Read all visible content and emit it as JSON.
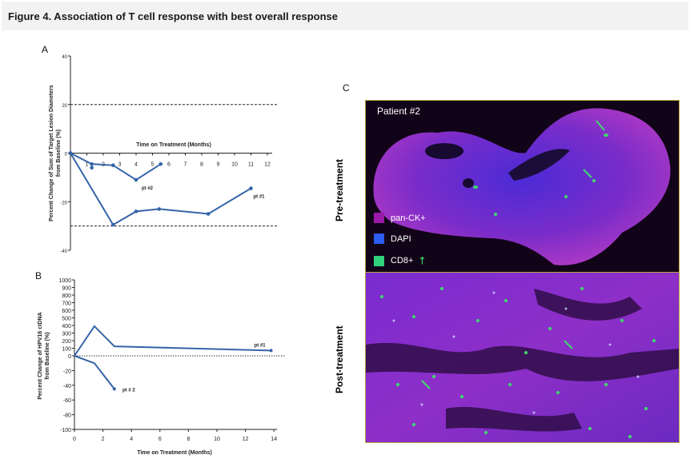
{
  "figure": {
    "title": "Figure 4. Association of T cell response with best overall response",
    "panel_a_letter": "A",
    "panel_b_letter": "B",
    "panel_c_letter": "C"
  },
  "chart_data": [
    {
      "type": "line",
      "panel": "A",
      "xlabel": "Time on Treatment (Months)",
      "ylabel": "Percent Change of Sum of Target Lesion Diameters from Baseline (%)",
      "xlim": [
        0,
        12
      ],
      "ylim": [
        -40,
        40
      ],
      "x_ticks": [
        1,
        2,
        3,
        4,
        5,
        6,
        7,
        8,
        9,
        10,
        11,
        12
      ],
      "y_ticks": [
        40,
        20,
        0,
        -20,
        -40
      ],
      "reference_lines": [
        20,
        -30
      ],
      "series": [
        {
          "name": "pt #1",
          "x": [
            0,
            2.6,
            4,
            5.4,
            8.4,
            11
          ],
          "y": [
            0,
            -29.5,
            -24,
            -23,
            -25,
            -14.5
          ]
        },
        {
          "name": "pt #2",
          "x": [
            0,
            1.3,
            2.6,
            4,
            5.5
          ],
          "y": [
            0,
            -4.5,
            -5,
            -11,
            -4.5
          ]
        }
      ],
      "extra_points": [
        {
          "x": 1.3,
          "y": -6
        }
      ],
      "series_color": "#3464a8"
    },
    {
      "type": "line",
      "panel": "B",
      "xlabel": "Time on Treatment  (Months)",
      "ylabel": "Percent Change of HPV16 ctDNA from Baseline (%)",
      "xlim": [
        0,
        14
      ],
      "ylim": [
        -100,
        1000
      ],
      "x_ticks": [
        0,
        2,
        4,
        6,
        8,
        10,
        12,
        14
      ],
      "y_ticks": [
        1000,
        900,
        800,
        700,
        600,
        500,
        400,
        300,
        200,
        100,
        0,
        -20,
        -40,
        -60,
        -80,
        -100
      ],
      "reference_lines": [
        0
      ],
      "series": [
        {
          "name": "pt #1",
          "x": [
            0,
            1.4,
            2.8,
            13.8
          ],
          "y": [
            0,
            390,
            125,
            70
          ]
        },
        {
          "name": "pt # 2",
          "x": [
            0,
            1.4,
            2.8
          ],
          "y": [
            0,
            -10,
            -45
          ]
        }
      ],
      "series_color": "#3464a8"
    }
  ],
  "panel_c": {
    "patient_label": "Patient #2",
    "pre_label": "Pre-treatment",
    "post_label": "Post-treatment",
    "legend": [
      {
        "label": "pan-CK+",
        "color": "#9b1aa8"
      },
      {
        "label": "DAPI",
        "color": "#2c5cf0"
      },
      {
        "label": "CD8+",
        "color": "#2fd17a"
      }
    ]
  }
}
